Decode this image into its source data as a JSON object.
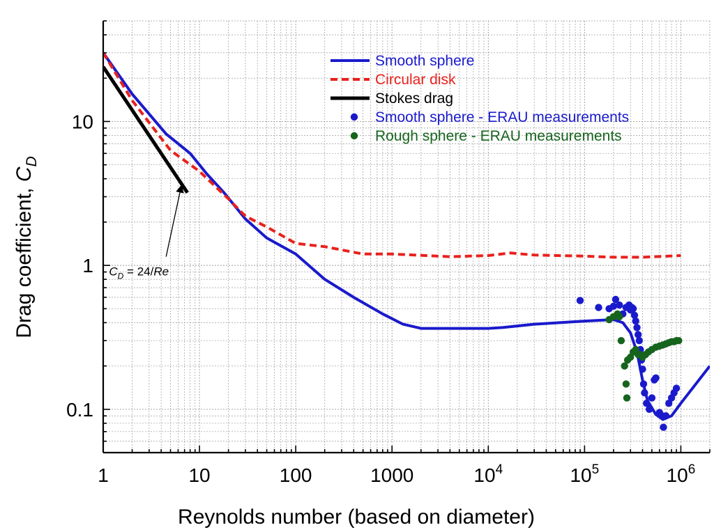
{
  "chart_data": {
    "type": "line",
    "x_scale": "log",
    "y_scale": "log",
    "xlim": [
      1,
      2000000
    ],
    "ylim": [
      0.05,
      50
    ],
    "grid": true,
    "legend_placement": "top-center",
    "xlabel": "Reynolds number (based on diameter)",
    "ylabel": {
      "prefix": "Drag coefficient, ",
      "symbol": "C",
      "subscript": "D"
    },
    "x_ticks": [
      {
        "value": 1,
        "base": "1",
        "exp": ""
      },
      {
        "value": 10,
        "base": "10",
        "exp": ""
      },
      {
        "value": 100,
        "base": "100",
        "exp": ""
      },
      {
        "value": 1000,
        "base": "1000",
        "exp": ""
      },
      {
        "value": 10000,
        "base": "10",
        "exp": "4"
      },
      {
        "value": 100000,
        "base": "10",
        "exp": "5"
      },
      {
        "value": 1000000,
        "base": "10",
        "exp": "6"
      }
    ],
    "y_ticks": [
      {
        "value": 0.1,
        "label": "0.1"
      },
      {
        "value": 1,
        "label": "1"
      },
      {
        "value": 10,
        "label": "10"
      }
    ],
    "series": [
      {
        "name": "Smooth sphere",
        "kind": "line",
        "style": "solid",
        "color": "#1a1acc",
        "points": [
          [
            1,
            30
          ],
          [
            2,
            15.5
          ],
          [
            4.5,
            8.2
          ],
          [
            8,
            6
          ],
          [
            12,
            4.3
          ],
          [
            18,
            3.2
          ],
          [
            30,
            2.1
          ],
          [
            50,
            1.55
          ],
          [
            100,
            1.2
          ],
          [
            200,
            0.8
          ],
          [
            400,
            0.6
          ],
          [
            800,
            0.46
          ],
          [
            1300,
            0.39
          ],
          [
            2000,
            0.365
          ],
          [
            5000,
            0.365
          ],
          [
            10000,
            0.365
          ],
          [
            14000,
            0.37
          ],
          [
            30000,
            0.39
          ],
          [
            100000,
            0.41
          ],
          [
            200000,
            0.42
          ],
          [
            250000,
            0.4
          ],
          [
            300000,
            0.34
          ],
          [
            350000,
            0.25
          ],
          [
            400000,
            0.16
          ],
          [
            450000,
            0.115
          ],
          [
            550000,
            0.092
          ],
          [
            650000,
            0.085
          ],
          [
            800000,
            0.09
          ],
          [
            1000000,
            0.11
          ],
          [
            2000000,
            0.2
          ]
        ]
      },
      {
        "name": "Circular disk",
        "kind": "line",
        "style": "dashed",
        "color": "#e8211c",
        "points": [
          [
            1,
            30
          ],
          [
            2,
            14
          ],
          [
            5,
            6.3
          ],
          [
            10,
            4.5
          ],
          [
            20,
            2.9
          ],
          [
            30,
            2.2
          ],
          [
            50,
            1.85
          ],
          [
            100,
            1.42
          ],
          [
            200,
            1.35
          ],
          [
            500,
            1.2
          ],
          [
            1000,
            1.2
          ],
          [
            4000,
            1.15
          ],
          [
            10000,
            1.17
          ],
          [
            17000,
            1.22
          ],
          [
            30000,
            1.18
          ],
          [
            100000,
            1.16
          ],
          [
            200000,
            1.14
          ],
          [
            400000,
            1.14
          ],
          [
            1000000,
            1.17
          ]
        ]
      },
      {
        "name": "Stokes drag",
        "kind": "line",
        "style": "solid",
        "color": "#000000",
        "points": [
          [
            1,
            24
          ],
          [
            7.5,
            3.2
          ]
        ]
      },
      {
        "name": "Smooth sphere - ERAU measurements",
        "kind": "scatter",
        "color": "#1a1acc",
        "points": [
          [
            90000,
            0.57
          ],
          [
            140000,
            0.51
          ],
          [
            180000,
            0.5
          ],
          [
            200000,
            0.52
          ],
          [
            210000,
            0.58
          ],
          [
            230000,
            0.53
          ],
          [
            250000,
            0.46
          ],
          [
            270000,
            0.51
          ],
          [
            290000,
            0.53
          ],
          [
            300000,
            0.49
          ],
          [
            310000,
            0.51
          ],
          [
            320000,
            0.5
          ],
          [
            330000,
            0.45
          ],
          [
            340000,
            0.41
          ],
          [
            350000,
            0.37
          ],
          [
            360000,
            0.33
          ],
          [
            370000,
            0.3
          ],
          [
            380000,
            0.26
          ],
          [
            390000,
            0.22
          ],
          [
            400000,
            0.19
          ],
          [
            410000,
            0.15
          ],
          [
            420000,
            0.13
          ],
          [
            440000,
            0.11
          ],
          [
            470000,
            0.1
          ],
          [
            500000,
            0.12
          ],
          [
            530000,
            0.16
          ],
          [
            550000,
            0.165
          ],
          [
            600000,
            0.095
          ],
          [
            640000,
            0.09
          ],
          [
            660000,
            0.075
          ],
          [
            700000,
            0.09
          ],
          [
            750000,
            0.11
          ],
          [
            800000,
            0.12
          ],
          [
            850000,
            0.13
          ],
          [
            900000,
            0.14
          ]
        ]
      },
      {
        "name": "Rough sphere - ERAU measurements",
        "kind": "scatter",
        "color": "#16641d",
        "points": [
          [
            180000,
            0.42
          ],
          [
            200000,
            0.44
          ],
          [
            220000,
            0.46
          ],
          [
            230000,
            0.44
          ],
          [
            240000,
            0.3
          ],
          [
            260000,
            0.2
          ],
          [
            270000,
            0.15
          ],
          [
            275000,
            0.12
          ],
          [
            280000,
            0.22
          ],
          [
            300000,
            0.23
          ],
          [
            320000,
            0.25
          ],
          [
            340000,
            0.26
          ],
          [
            360000,
            0.24
          ],
          [
            380000,
            0.24
          ],
          [
            400000,
            0.23
          ],
          [
            430000,
            0.24
          ],
          [
            460000,
            0.25
          ],
          [
            500000,
            0.26
          ],
          [
            550000,
            0.27
          ],
          [
            600000,
            0.275
          ],
          [
            650000,
            0.28
          ],
          [
            700000,
            0.285
          ],
          [
            750000,
            0.29
          ],
          [
            800000,
            0.295
          ],
          [
            850000,
            0.295
          ],
          [
            900000,
            0.3
          ],
          [
            950000,
            0.3
          ]
        ]
      }
    ],
    "annotation": {
      "symbol": "C",
      "subscript": "D",
      "equals": " = 24/",
      "italic_tail": "Re",
      "arrow_from": [
        4.5,
        1.15
      ],
      "arrow_to": [
        6.5,
        3.6
      ],
      "label_at": [
        1.15,
        0.85
      ]
    }
  }
}
